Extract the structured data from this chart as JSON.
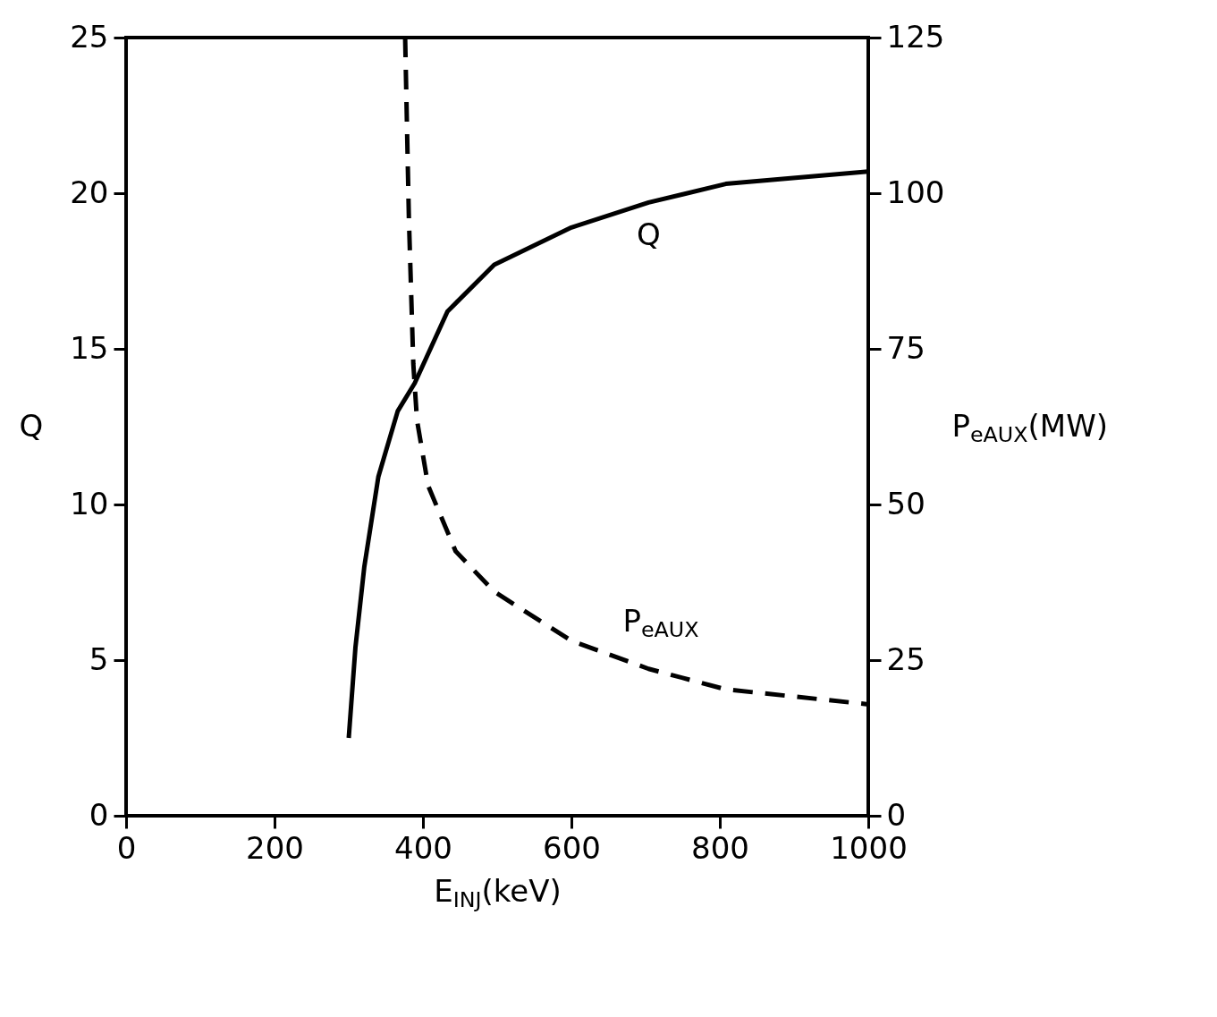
{
  "chart_data": {
    "type": "line",
    "xlabel": "E$_{INJ}$(keV)",
    "ylabel": "Q",
    "y2label": "P$_{eAUX}$(MW)",
    "xlim": [
      0,
      1000
    ],
    "xticks": [
      0,
      200,
      400,
      600,
      800,
      1000
    ],
    "ylim": [
      0,
      25
    ],
    "yticks": [
      0,
      5,
      10,
      15,
      20,
      25
    ],
    "y2lim": [
      0,
      125
    ],
    "y2ticks": [
      0,
      25,
      50,
      75,
      100,
      125
    ],
    "grid": false,
    "legend": false,
    "marker": "none",
    "series": [
      {
        "name": "Q",
        "color": "#000000",
        "line_style": "solid",
        "x": [
          300,
          309,
          321,
          340,
          366,
          389,
          433,
          496,
          600,
          704,
          808,
          1000
        ],
        "values": [
          2.5,
          5.4,
          8.0,
          10.9,
          13.0,
          13.9,
          16.2,
          17.7,
          18.9,
          19.7,
          20.3,
          20.7
        ]
      },
      {
        "name": "P$_{eAUX}$",
        "color": "#000000",
        "line_style": "dashed",
        "axis": "y2",
        "x": [
          376,
          381,
          387,
          392,
          407,
          444,
          496,
          600,
          704,
          808,
          1000
        ],
        "values": [
          125,
          96.2,
          72.6,
          63.5,
          53,
          42.5,
          36,
          28.1,
          23.6,
          20.3,
          17.9
        ]
      }
    ]
  }
}
